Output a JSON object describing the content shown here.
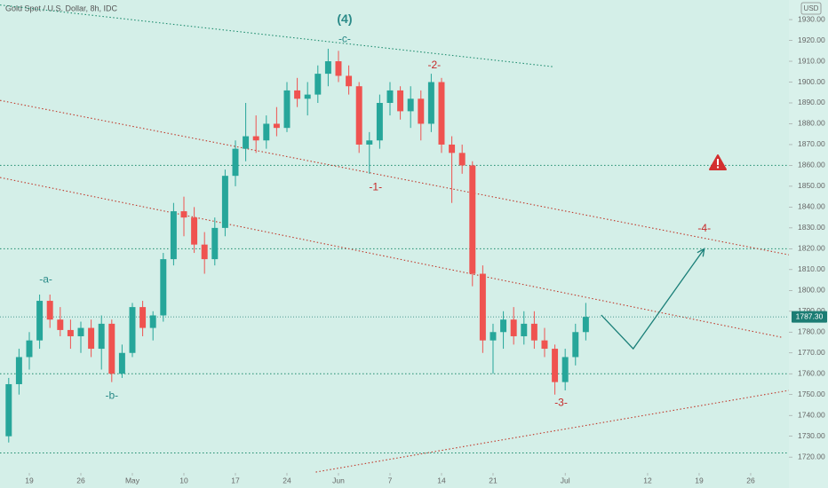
{
  "chart_data": {
    "type": "candlestick",
    "title": "Gold Spot / U.S. Dollar, 8h, IDC",
    "axis_unit": "USD",
    "x": [
      -2,
      -1,
      0,
      1,
      2,
      3,
      4,
      5,
      6,
      7,
      8,
      9,
      10,
      11,
      12,
      13,
      14,
      15,
      16,
      17,
      18,
      19,
      20,
      21,
      22,
      23,
      24,
      25,
      26,
      27,
      28,
      29,
      30,
      31,
      32,
      33,
      34,
      35,
      36,
      37,
      38,
      39,
      40,
      41,
      42,
      43,
      44,
      45,
      46,
      47,
      48,
      49,
      50,
      51,
      52,
      53,
      54
    ],
    "open": [
      1730,
      1755,
      1768,
      1776,
      1795,
      1786,
      1781,
      1778,
      1782,
      1772,
      1784,
      1760,
      1770,
      1792,
      1782,
      1788,
      1815,
      1838,
      1835,
      1822,
      1815,
      1830,
      1855,
      1868,
      1874,
      1872,
      1880,
      1878,
      1896,
      1892,
      1894,
      1904,
      1910,
      1903,
      1898,
      1870,
      1872,
      1890,
      1896,
      1886,
      1892,
      1880,
      1900,
      1870,
      1866,
      1860,
      1808,
      1776,
      1780,
      1786,
      1778,
      1784,
      1776,
      1772,
      1756,
      1768,
      1780
    ],
    "high": [
      1758,
      1772,
      1780,
      1798,
      1798,
      1792,
      1786,
      1785,
      1786,
      1788,
      1786,
      1774,
      1794,
      1795,
      1790,
      1818,
      1842,
      1845,
      1840,
      1828,
      1835,
      1858,
      1872,
      1890,
      1884,
      1884,
      1888,
      1900,
      1902,
      1900,
      1908,
      1916,
      1915,
      1908,
      1900,
      1876,
      1894,
      1900,
      1898,
      1898,
      1896,
      1904,
      1902,
      1874,
      1870,
      1862,
      1812,
      1784,
      1790,
      1792,
      1790,
      1790,
      1782,
      1774,
      1772,
      1784,
      1794
    ],
    "low": [
      1727,
      1750,
      1762,
      1772,
      1782,
      1778,
      1772,
      1770,
      1768,
      1762,
      1756,
      1758,
      1768,
      1778,
      1776,
      1785,
      1812,
      1826,
      1818,
      1808,
      1812,
      1826,
      1850,
      1862,
      1866,
      1868,
      1874,
      1876,
      1888,
      1884,
      1890,
      1898,
      1900,
      1894,
      1866,
      1856,
      1868,
      1884,
      1882,
      1878,
      1872,
      1876,
      1866,
      1842,
      1856,
      1802,
      1770,
      1760,
      1772,
      1774,
      1774,
      1772,
      1768,
      1750,
      1752,
      1764,
      1776
    ],
    "close": [
      1755,
      1768,
      1776,
      1795,
      1786,
      1781,
      1778,
      1782,
      1772,
      1784,
      1760,
      1770,
      1792,
      1782,
      1788,
      1815,
      1838,
      1835,
      1822,
      1815,
      1830,
      1855,
      1868,
      1874,
      1872,
      1880,
      1878,
      1896,
      1892,
      1894,
      1904,
      1910,
      1903,
      1898,
      1870,
      1872,
      1890,
      1896,
      1886,
      1892,
      1880,
      1900,
      1870,
      1866,
      1860,
      1808,
      1776,
      1780,
      1786,
      1778,
      1784,
      1776,
      1772,
      1756,
      1768,
      1780,
      1787.3
    ],
    "up_color": "#26a69a",
    "down_color": "#ef5350",
    "last_price": 1787.3,
    "last_price_label": "1787.30",
    "xlim": [
      -2.845,
      73.71
    ],
    "ylim": [
      1712.4,
      1939.4
    ],
    "xticks": [
      {
        "value": 0,
        "label": "19"
      },
      {
        "value": 5,
        "label": "26"
      },
      {
        "value": 10,
        "label": "May"
      },
      {
        "value": 15,
        "label": "10"
      },
      {
        "value": 20,
        "label": "17"
      },
      {
        "value": 25,
        "label": "24"
      },
      {
        "value": 30,
        "label": "Jun"
      },
      {
        "value": 35,
        "label": "7"
      },
      {
        "value": 40,
        "label": "14"
      },
      {
        "value": 45,
        "label": "21"
      },
      {
        "value": 52,
        "label": "Jul"
      },
      {
        "value": 60,
        "label": "12"
      },
      {
        "value": 65,
        "label": "19"
      },
      {
        "value": 70,
        "label": "26"
      }
    ],
    "yticks": [
      {
        "value": 1720,
        "label": "1720.00"
      },
      {
        "value": 1730,
        "label": "1730.00"
      },
      {
        "value": 1740,
        "label": "1740.00"
      },
      {
        "value": 1750,
        "label": "1750.00"
      },
      {
        "value": 1760,
        "label": "1760.00"
      },
      {
        "value": 1770,
        "label": "1770.00"
      },
      {
        "value": 1780,
        "label": "1780.00"
      },
      {
        "value": 1790,
        "label": "1790.00"
      },
      {
        "value": 1800,
        "label": "1800.00"
      },
      {
        "value": 1810,
        "label": "1810.00"
      },
      {
        "value": 1820,
        "label": "1820.00"
      },
      {
        "value": 1830,
        "label": "1830.00"
      },
      {
        "value": 1840,
        "label": "1840.00"
      },
      {
        "value": 1850,
        "label": "1850.00"
      },
      {
        "value": 1860,
        "label": "1860.00"
      },
      {
        "value": 1870,
        "label": "1870.00"
      },
      {
        "value": 1880,
        "label": "1880.00"
      },
      {
        "value": 1890,
        "label": "1890.00"
      },
      {
        "value": 1900,
        "label": "1900.00"
      },
      {
        "value": 1910,
        "label": "1910.00"
      },
      {
        "value": 1920,
        "label": "1920.00"
      },
      {
        "value": 1930,
        "label": "1930.00"
      }
    ],
    "levels": [
      1860,
      1820,
      1760,
      1722
    ],
    "level_color": "#1e8c6e",
    "trend_lines": [
      {
        "color": "#1e8c6e",
        "x": [
          -2.84,
          50.8
        ],
        "y": [
          1937,
          1907.4
        ]
      },
      {
        "color": "#c0392b",
        "x": [
          -2.84,
          73.7
        ],
        "y": [
          1891.2,
          1817.1
        ]
      },
      {
        "color": "#c0392b",
        "x": [
          -2.84,
          73.0
        ],
        "y": [
          1854.2,
          1777.5
        ]
      },
      {
        "color": "#c0392b",
        "x": [
          27.8,
          73.7
        ],
        "y": [
          1712.8,
          1752
        ]
      }
    ],
    "projection": {
      "color": "#1a7f78",
      "x": [
        55.5,
        58.6,
        65.5
      ],
      "y": [
        1788.2,
        1772,
        1820
      ]
    },
    "annotations": [
      {
        "text": "(4)",
        "x": 30.6,
        "y": 1930,
        "color": "#2a8a88",
        "size": 14
      },
      {
        "text": "-c-",
        "x": 30.6,
        "y": 1920.6,
        "color": "#2a8a88",
        "size": 12
      },
      {
        "text": "-2-",
        "x": 39.3,
        "y": 1907.9,
        "color": "#c62828",
        "size": 12
      },
      {
        "text": "-1-",
        "x": 33.6,
        "y": 1849.5,
        "color": "#c62828",
        "size": 12
      },
      {
        "text": "-a-",
        "x": 1.6,
        "y": 1805,
        "color": "#2a8a88",
        "size": 12
      },
      {
        "text": "-b-",
        "x": 8.0,
        "y": 1749.4,
        "color": "#2a8a88",
        "size": 12
      },
      {
        "text": "-3-",
        "x": 51.6,
        "y": 1746,
        "color": "#c62828",
        "size": 12
      },
      {
        "text": "-4-",
        "x": 65.5,
        "y": 1829.5,
        "color": "#c62828",
        "size": 12
      }
    ]
  }
}
